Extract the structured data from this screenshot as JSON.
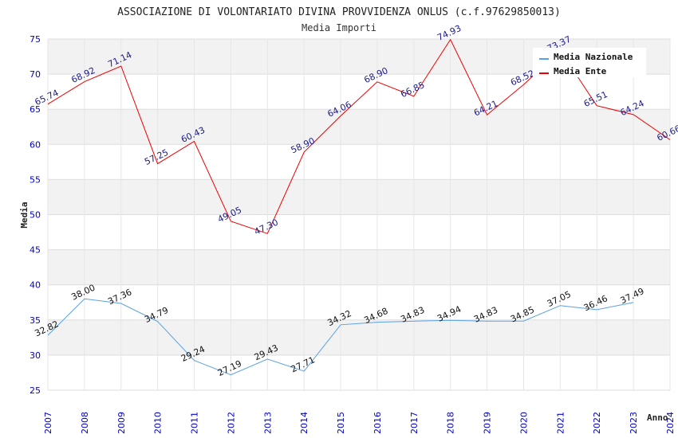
{
  "header": {
    "title": "ASSOCIAZIONE DI VOLONTARIATO DIVINA PROVVIDENZA ONLUS (c.f.97629850013)",
    "subtitle": "Media Importi"
  },
  "chart_data": {
    "type": "line",
    "title": "ASSOCIAZIONE DI VOLONTARIATO DIVINA PROVVIDENZA ONLUS (c.f.97629850013)",
    "subtitle": "Media Importi",
    "xlabel": "Anno",
    "ylabel": "Media",
    "categories": [
      "2007",
      "2008",
      "2009",
      "2010",
      "2011",
      "2012",
      "2013",
      "2014",
      "2015",
      "2016",
      "2017",
      "2018",
      "2019",
      "2020",
      "2021",
      "2022",
      "2023",
      "2024"
    ],
    "yticks": [
      "25",
      "30",
      "35",
      "40",
      "45",
      "50",
      "55",
      "60",
      "65",
      "70",
      "75"
    ],
    "ylim": [
      25,
      75
    ],
    "grid": "horizontal bands",
    "legend_position": "top-right",
    "series": [
      {
        "name": "Media Nazionale",
        "color": "#5aa0e0",
        "label_color": "#111111",
        "values": [
          32.82,
          38.0,
          37.36,
          34.79,
          29.24,
          27.19,
          29.43,
          27.71,
          34.32,
          34.68,
          34.83,
          34.94,
          34.83,
          34.85,
          37.05,
          36.46,
          37.49,
          null
        ],
        "labels": [
          "32.82",
          "38.00",
          "37.36",
          "34.79",
          "29.24",
          "27.19",
          "29.43",
          "27.71",
          "34.32",
          "34.68",
          "34.83",
          "34.94",
          "34.83",
          "34.85",
          "37.05",
          "36.46",
          "37.49",
          ""
        ]
      },
      {
        "name": "Media Ente",
        "color": "#ee0000",
        "label_color": "#1a1a8c",
        "values": [
          65.74,
          68.92,
          71.14,
          57.25,
          60.43,
          49.05,
          47.3,
          58.9,
          64.06,
          68.9,
          66.85,
          74.93,
          64.21,
          68.52,
          73.37,
          65.51,
          64.24,
          60.66
        ],
        "labels": [
          "65.74",
          "68.92",
          "71.14",
          "57.25",
          "60.43",
          "49.05",
          "47.30",
          "58.90",
          "64.06",
          "68.90",
          "66.85",
          "74.93",
          "64.21",
          "68.52",
          "73.37",
          "65.51",
          "64.24",
          "60.66"
        ]
      }
    ]
  }
}
